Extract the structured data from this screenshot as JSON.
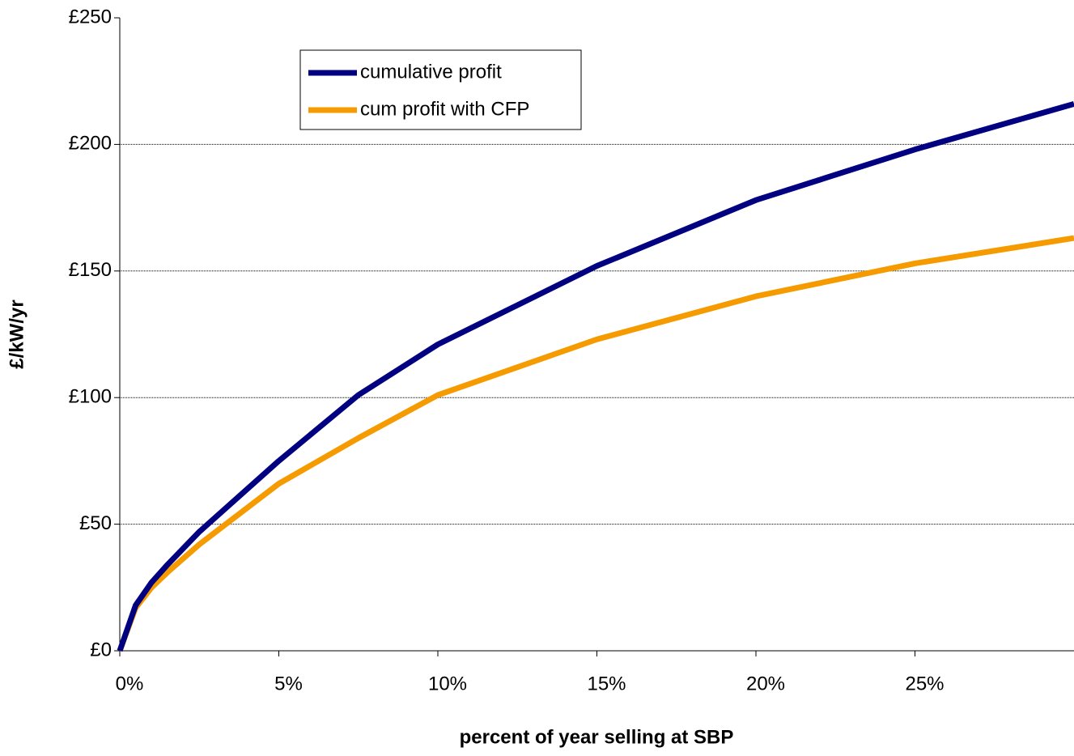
{
  "chart_data": {
    "type": "line",
    "x_label": "percent of year selling at SBP",
    "y_label": "£/kW/yr",
    "x": [
      0,
      0.5,
      1,
      1.5,
      2.5,
      5,
      7.5,
      10,
      15,
      20,
      25,
      30
    ],
    "series": [
      {
        "name": "cumulative profit",
        "color": "#000080",
        "values": [
          0,
          18,
          27,
          34,
          47,
          75,
          101,
          121,
          152,
          178,
          198,
          216
        ]
      },
      {
        "name": "cum profit with CFP",
        "color": "#f59b00",
        "values": [
          0,
          17,
          25,
          31,
          42,
          66,
          84,
          101,
          123,
          140,
          153,
          163
        ]
      }
    ],
    "xlim": [
      0,
      30
    ],
    "xticks": [
      {
        "value": 0,
        "label": "0%"
      },
      {
        "value": 5,
        "label": "5%"
      },
      {
        "value": 10,
        "label": "10%"
      },
      {
        "value": 15,
        "label": "15%"
      },
      {
        "value": 20,
        "label": "20%"
      },
      {
        "value": 25,
        "label": "25%"
      }
    ],
    "ylim": [
      0,
      250
    ],
    "yticks": [
      {
        "value": 0,
        "label": "£0"
      },
      {
        "value": 50,
        "label": "£50"
      },
      {
        "value": 100,
        "label": "£100"
      },
      {
        "value": 150,
        "label": "£150"
      },
      {
        "value": 200,
        "label": "£200"
      },
      {
        "value": 250,
        "label": "£250"
      }
    ],
    "grid": true,
    "legend": "top-left"
  }
}
